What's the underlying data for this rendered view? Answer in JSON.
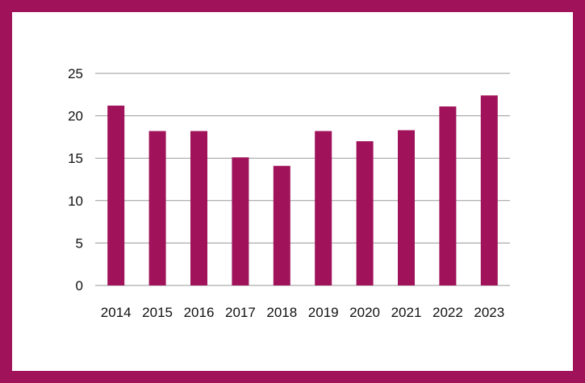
{
  "colors": {
    "frame": "#a0135a",
    "bar": "#a0135a",
    "grid": "#9a9a9a",
    "text": "#111111"
  },
  "chart_data": {
    "type": "bar",
    "title": "",
    "xlabel": "",
    "ylabel": "",
    "categories": [
      "2014",
      "2015",
      "2016",
      "2017",
      "2018",
      "2019",
      "2020",
      "2021",
      "2022",
      "2023"
    ],
    "values": [
      21.2,
      18.2,
      18.2,
      15.1,
      14.1,
      18.2,
      17.0,
      18.3,
      21.1,
      22.4
    ],
    "ylim": [
      0,
      25
    ],
    "yticks": [
      "0",
      "5",
      "10",
      "15",
      "20",
      "25"
    ],
    "grid": true,
    "legend": "none"
  }
}
